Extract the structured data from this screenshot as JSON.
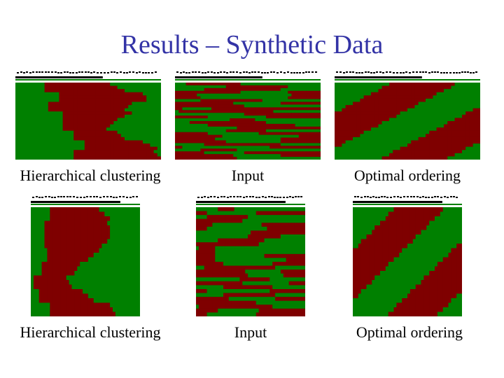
{
  "slide": {
    "title": "Results – Synthetic Data"
  },
  "colors": {
    "title": "#3333a6",
    "red": "#7f0000",
    "green": "#008000",
    "black": "#000000"
  },
  "panels": [
    {
      "caption": "Hierarchical clustering",
      "pattern": "hierarchical"
    },
    {
      "caption": "Input",
      "pattern": "input"
    },
    {
      "caption": "Optimal ordering",
      "pattern": "optimal"
    },
    {
      "caption": "Hierarchical clustering",
      "pattern": "hierarchical"
    },
    {
      "caption": "Input",
      "pattern": "input"
    },
    {
      "caption": "Optimal ordering",
      "pattern": "optimal"
    }
  ]
}
